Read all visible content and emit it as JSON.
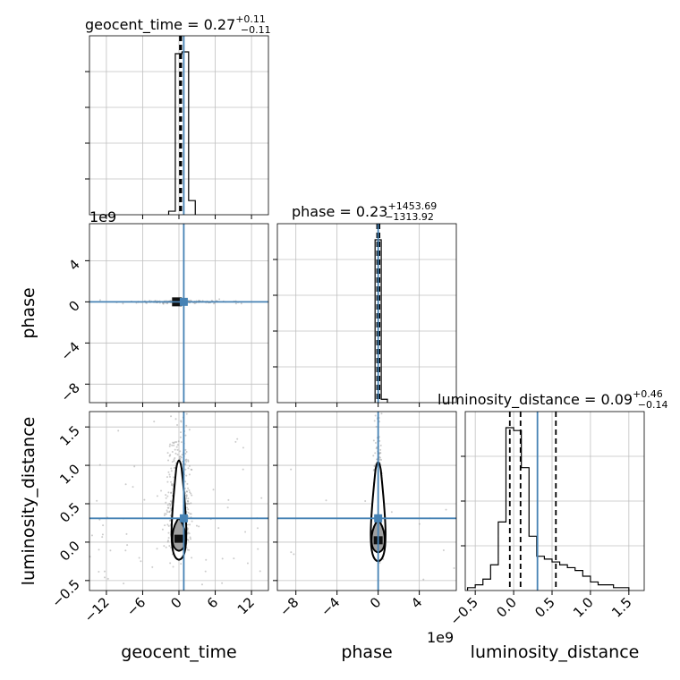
{
  "chart_data": {
    "type": "corner",
    "parameters": [
      "geocent_time",
      "phase",
      "luminosity_distance"
    ],
    "truth": {
      "geocent_time": 0.8,
      "phase": 0.0,
      "luminosity_distance": 0.31
    },
    "colors": {
      "truth": "#4682b4",
      "hist": "#000000",
      "grid": "#c0c0c0",
      "scatter": "#9a9a9a"
    },
    "exponent_labels": {
      "phase": "1e9"
    },
    "titles": [
      {
        "param": "geocent_time",
        "text": "geocent_time = 0.27",
        "sup": "+0.11",
        "sub": "−0.11"
      },
      {
        "param": "phase",
        "text": "phase = 0.23",
        "sup": "+1453.69",
        "sub": "−1313.92"
      },
      {
        "param": "luminosity_distance",
        "text": "luminosity_distance = 0.09",
        "sup": "+0.46",
        "sub": "−0.14"
      }
    ],
    "axes": {
      "geocent_time": {
        "label": "geocent_time",
        "range": [
          -14.8,
          14.8
        ],
        "ticks": [
          -12,
          -6,
          0,
          6,
          12
        ],
        "tick_labels": [
          "−12",
          "−6",
          "0",
          "6",
          "12"
        ]
      },
      "phase": {
        "label": "phase",
        "range": [
          -9.8,
          7.6
        ],
        "x_ticks": [
          -8,
          -4,
          0,
          4
        ],
        "x_tick_labels": [
          "−8",
          "−4",
          "0",
          "4"
        ],
        "y_ticks": [
          4,
          0,
          -4,
          -8
        ],
        "y_tick_labels": [
          "4",
          "0",
          "−4",
          "−8"
        ]
      },
      "luminosity_distance": {
        "label": "luminosity_distance",
        "range": [
          -0.63,
          1.7
        ],
        "ticks": [
          -0.5,
          0.0,
          0.5,
          1.0,
          1.5
        ],
        "tick_labels": [
          "−0.5",
          "0.0",
          "0.5",
          "1.0",
          "1.5"
        ]
      }
    },
    "hist_geocent_time": {
      "edges": [
        -1.7,
        -0.6,
        0.5,
        1.6,
        2.7
      ],
      "counts": [
        2,
        91,
        92,
        8
      ],
      "quantile_lines": [
        0.16,
        0.27,
        0.38
      ]
    },
    "hist_phase": {
      "edges": [
        -0.3,
        0.3,
        0.9
      ],
      "counts": [
        98,
        2
      ],
      "quantile_lines": [
        -0.1,
        0.0,
        0.13
      ]
    },
    "hist_luminosity_distance": {
      "edges": [
        -0.6,
        -0.5,
        -0.4,
        -0.3,
        -0.2,
        -0.1,
        0.0,
        0.1,
        0.2,
        0.3,
        0.4,
        0.5,
        0.6,
        0.7,
        0.8,
        0.9,
        1.0,
        1.1,
        1.2,
        1.3,
        1.4,
        1.5
      ],
      "counts": [
        1,
        2,
        4,
        9,
        24,
        57,
        56,
        43,
        19,
        12,
        11,
        10,
        9,
        8,
        7,
        5,
        3,
        2,
        2,
        1,
        1
      ],
      "quantile_lines": [
        -0.05,
        0.09,
        0.55
      ]
    },
    "density_geocent_luminosity": {
      "center": [
        0.0,
        0.05
      ],
      "sigma": [
        0.6,
        0.25
      ]
    },
    "density_phase_luminosity": {
      "center": [
        0.0,
        0.03
      ],
      "sigma": [
        0.25,
        0.22
      ]
    }
  }
}
